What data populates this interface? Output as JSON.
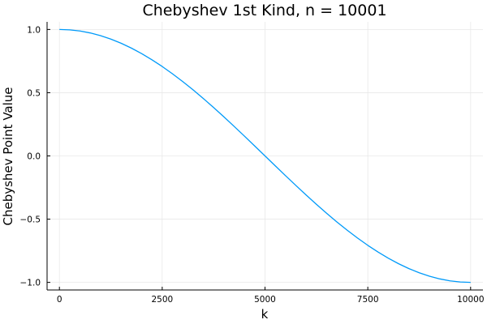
{
  "chart_data": {
    "type": "line",
    "title": "Chebyshev 1st Kind, n = 10001",
    "xlabel": "k",
    "ylabel": "Chebyshev Point Value",
    "xlim": [
      -300,
      10300
    ],
    "ylim": [
      -1.06,
      1.06
    ],
    "x_ticks": [
      0,
      2500,
      5000,
      7500,
      10000
    ],
    "x_tick_labels": [
      "0",
      "2500",
      "5000",
      "7500",
      "10000"
    ],
    "y_ticks": [
      -1.0,
      -0.5,
      0.0,
      0.5,
      1.0
    ],
    "y_tick_labels": [
      "−1.0",
      "−0.5",
      "0.0",
      "0.5",
      "1.0"
    ],
    "grid": true,
    "legend": false,
    "series": [
      {
        "color": "#009af9",
        "x": [
          0,
          250,
          500,
          750,
          1000,
          1250,
          1500,
          1750,
          2000,
          2250,
          2500,
          2750,
          3000,
          3250,
          3500,
          3750,
          4000,
          4250,
          4500,
          4750,
          5000,
          5250,
          5500,
          5750,
          6000,
          6250,
          6500,
          6750,
          7000,
          7250,
          7500,
          7750,
          8000,
          8250,
          8500,
          8750,
          9000,
          9250,
          9500,
          9750,
          10000
        ],
        "y": [
          1.0,
          0.9969,
          0.9877,
          0.9724,
          0.9511,
          0.9239,
          0.891,
          0.8526,
          0.809,
          0.7604,
          0.7071,
          0.6494,
          0.5878,
          0.5225,
          0.454,
          0.3827,
          0.309,
          0.2334,
          0.1564,
          0.0785,
          0.0,
          -0.0785,
          -0.1564,
          -0.2334,
          -0.309,
          -0.3827,
          -0.454,
          -0.5225,
          -0.5878,
          -0.6494,
          -0.7071,
          -0.7604,
          -0.809,
          -0.8526,
          -0.891,
          -0.9239,
          -0.9511,
          -0.9724,
          -0.9877,
          -0.9969,
          -1.0
        ]
      }
    ]
  }
}
